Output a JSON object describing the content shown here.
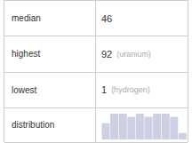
{
  "chart_data": {
    "type": "table",
    "rows": [
      {
        "label": "median",
        "value": 46
      },
      {
        "label": "highest",
        "value": 92,
        "note": "(uranium)"
      },
      {
        "label": "lowest",
        "value": 1,
        "note": "(hydrogen)"
      },
      {
        "label": "distribution",
        "chart": {
          "type": "bar",
          "values": [
            5,
            8,
            8,
            7,
            8,
            7,
            8,
            8,
            7,
            2
          ],
          "color": "#cdd0e3",
          "ylim": [
            0,
            8.8
          ],
          "tick_labels": false
        }
      }
    ]
  }
}
